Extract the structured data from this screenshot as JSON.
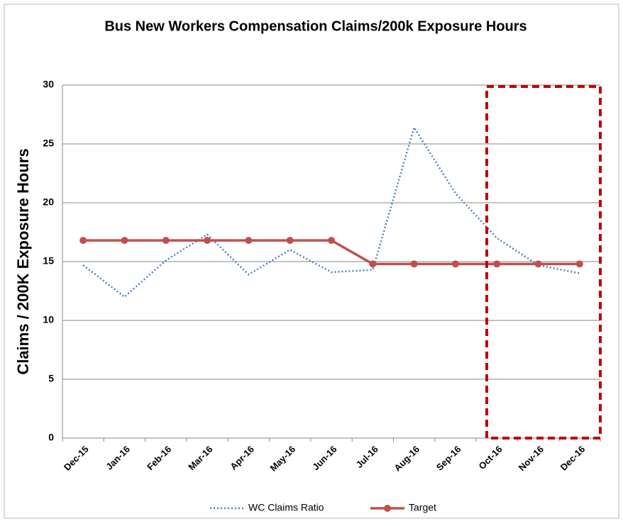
{
  "chart_data": {
    "type": "line",
    "title": "Bus New Workers Compensation Claims/200k Exposure Hours",
    "y_label": "Claims / 200K Exposure Hours",
    "categories": [
      "Dec-15",
      "Jan-16",
      "Feb-16",
      "Mar-16",
      "Apr-16",
      "May-16",
      "Jun-16",
      "Jul-16",
      "Aug-16",
      "Sep-16",
      "Oct-16",
      "Nov-16",
      "Dec-16"
    ],
    "series": [
      {
        "name": "WC Claims Ratio",
        "color": "#4f81bd",
        "style": "dotted",
        "markers": false,
        "values": [
          14.7,
          12.0,
          15.1,
          17.3,
          13.9,
          16.0,
          14.1,
          14.3,
          26.4,
          20.8,
          17.0,
          14.7,
          14.0
        ]
      },
      {
        "name": "Target",
        "color": "#c0504d",
        "style": "solid",
        "markers": true,
        "values": [
          16.8,
          16.8,
          16.8,
          16.8,
          16.8,
          16.8,
          16.8,
          14.8,
          14.8,
          14.8,
          14.8,
          14.8,
          14.8
        ]
      }
    ],
    "ylim": [
      0,
      30
    ],
    "yticks": [
      0,
      5,
      10,
      15,
      20,
      25,
      30
    ],
    "grid": true,
    "legend": "bottom"
  }
}
